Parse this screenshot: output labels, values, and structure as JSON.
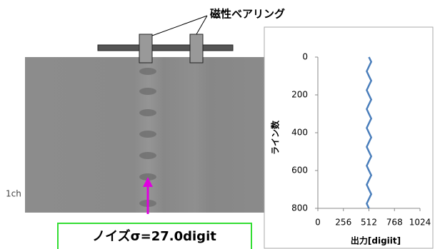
{
  "chart_data": {
    "type": "line",
    "annotations": [
      "磁性ベアリング",
      "1ch",
      "ノイズσ=27.0digit"
    ],
    "x_label": "出力[digiit]",
    "y_label": "ライン数",
    "y": [
      0,
      25,
      50,
      75,
      100,
      125,
      150,
      175,
      200,
      225,
      250,
      275,
      300,
      325,
      350,
      375,
      400,
      425,
      450,
      475,
      500,
      525,
      550,
      575,
      600,
      625,
      650,
      675,
      700,
      725,
      750,
      775,
      800
    ],
    "series": [
      {
        "name": "1ch",
        "color": "#4a7ebb",
        "values": [
          512,
          535,
          512,
          490,
          512,
          535,
          512,
          490,
          512,
          535,
          512,
          490,
          512,
          535,
          512,
          490,
          512,
          535,
          512,
          490,
          512,
          535,
          512,
          490,
          512,
          535,
          512,
          490,
          512,
          535,
          512,
          490,
          512
        ]
      }
    ],
    "xlim": [
      0,
      1024
    ],
    "xticks": [
      0,
      256,
      512,
      768,
      1024
    ],
    "ylim": [
      0,
      800
    ],
    "yticks": [
      0,
      200,
      400,
      600,
      800
    ],
    "y_inverted": true
  }
}
